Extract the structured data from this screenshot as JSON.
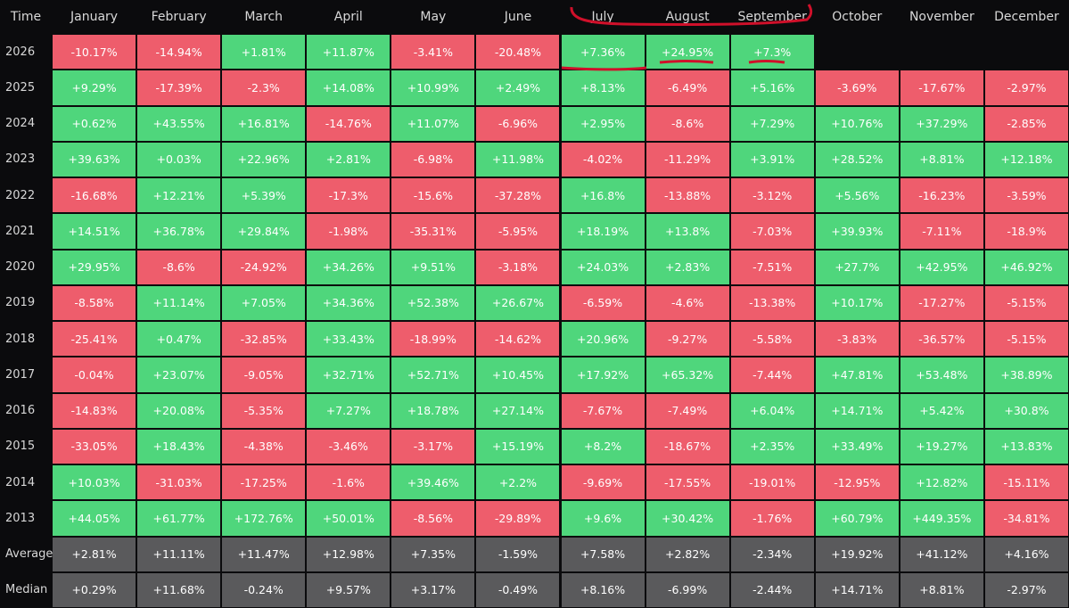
{
  "table": {
    "header": [
      "Time",
      "January",
      "February",
      "March",
      "April",
      "May",
      "June",
      "July",
      "August",
      "September",
      "October",
      "November",
      "December"
    ],
    "rows": [
      [
        "2026",
        "-10.17%",
        "-14.94%",
        "+1.81%",
        "+11.87%",
        "-3.41%",
        "-20.48%",
        "+7.36%",
        "+24.95%",
        "+7.3%"
      ],
      [
        "2025",
        "+9.29%",
        "-17.39%",
        "-2.3%",
        "+14.08%",
        "+10.99%",
        "+2.49%",
        "+8.13%",
        "-6.49%",
        "+5.16%",
        "-3.69%",
        "-17.67%",
        "-2.97%"
      ],
      [
        "2024",
        "+0.62%",
        "+43.55%",
        "+16.81%",
        "-14.76%",
        "+11.07%",
        "-6.96%",
        "+2.95%",
        "-8.6%",
        "+7.29%",
        "+10.76%",
        "+37.29%",
        "-2.85%"
      ],
      [
        "2023",
        "+39.63%",
        "+0.03%",
        "+22.96%",
        "+2.81%",
        "-6.98%",
        "+11.98%",
        "-4.02%",
        "-11.29%",
        "+3.91%",
        "+28.52%",
        "+8.81%",
        "+12.18%"
      ],
      [
        "2022",
        "-16.68%",
        "+12.21%",
        "+5.39%",
        "-17.3%",
        "-15.6%",
        "-37.28%",
        "+16.8%",
        "-13.88%",
        "-3.12%",
        "+5.56%",
        "-16.23%",
        "-3.59%"
      ],
      [
        "2021",
        "+14.51%",
        "+36.78%",
        "+29.84%",
        "-1.98%",
        "-35.31%",
        "-5.95%",
        "+18.19%",
        "+13.8%",
        "-7.03%",
        "+39.93%",
        "-7.11%",
        "-18.9%"
      ],
      [
        "2020",
        "+29.95%",
        "-8.6%",
        "-24.92%",
        "+34.26%",
        "+9.51%",
        "-3.18%",
        "+24.03%",
        "+2.83%",
        "-7.51%",
        "+27.7%",
        "+42.95%",
        "+46.92%"
      ],
      [
        "2019",
        "-8.58%",
        "+11.14%",
        "+7.05%",
        "+34.36%",
        "+52.38%",
        "+26.67%",
        "-6.59%",
        "-4.6%",
        "-13.38%",
        "+10.17%",
        "-17.27%",
        "-5.15%"
      ],
      [
        "2018",
        "-25.41%",
        "+0.47%",
        "-32.85%",
        "+33.43%",
        "-18.99%",
        "-14.62%",
        "+20.96%",
        "-9.27%",
        "-5.58%",
        "-3.83%",
        "-36.57%",
        "-5.15%"
      ],
      [
        "2017",
        "-0.04%",
        "+23.07%",
        "-9.05%",
        "+32.71%",
        "+52.71%",
        "+10.45%",
        "+17.92%",
        "+65.32%",
        "-7.44%",
        "+47.81%",
        "+53.48%",
        "+38.89%"
      ],
      [
        "2016",
        "-14.83%",
        "+20.08%",
        "-5.35%",
        "+7.27%",
        "+18.78%",
        "+27.14%",
        "-7.67%",
        "-7.49%",
        "+6.04%",
        "+14.71%",
        "+5.42%",
        "+30.8%"
      ],
      [
        "2015",
        "-33.05%",
        "+18.43%",
        "-4.38%",
        "-3.46%",
        "-3.17%",
        "+15.19%",
        "+8.2%",
        "-18.67%",
        "+2.35%",
        "+33.49%",
        "+19.27%",
        "+13.83%"
      ],
      [
        "2014",
        "+10.03%",
        "-31.03%",
        "-17.25%",
        "-1.6%",
        "+39.46%",
        "+2.2%",
        "-9.69%",
        "-17.55%",
        "-19.01%",
        "-12.95%",
        "+12.82%",
        "-15.11%"
      ],
      [
        "2013",
        "+44.05%",
        "+61.77%",
        "+172.76%",
        "+50.01%",
        "-8.56%",
        "-29.89%",
        "+9.6%",
        "+30.42%",
        "-1.76%",
        "+60.79%",
        "+449.35%",
        "-34.81%"
      ]
    ],
    "summary": [
      [
        "Average",
        "+2.81%",
        "+11.11%",
        "+11.47%",
        "+12.98%",
        "+7.35%",
        "-1.59%",
        "+7.58%",
        "+2.82%",
        "-2.34%",
        "+19.92%",
        "+41.12%",
        "+4.16%"
      ],
      [
        "Median",
        "+0.29%",
        "+11.68%",
        "-0.24%",
        "+9.57%",
        "+3.17%",
        "-0.49%",
        "+8.16%",
        "-6.99%",
        "-2.44%",
        "+14.71%",
        "+8.81%",
        "-2.97%"
      ]
    ]
  }
}
